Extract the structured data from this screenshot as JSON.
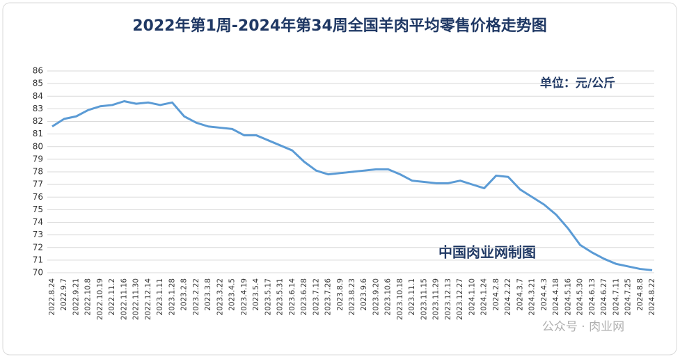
{
  "chart_data": {
    "type": "line",
    "title": "2022年第1周-2024年第34周全国羊肉平均零售价格走势图",
    "unit_note": "单位：元/公斤",
    "source_note": "中国肉业网制图",
    "watermark": "公众号 · 肉业网",
    "categories": [
      "2022.8.24",
      "2022.9.7",
      "2022.9.21",
      "2022.10.8",
      "2022.10.19",
      "2022.11.2",
      "2022.11.16",
      "2022.11.30",
      "2022.12.14",
      "2023.1.11",
      "2023.1.28",
      "2023.2.8",
      "2023.2.22",
      "2023.3.8",
      "2023.3.22",
      "2023.4.5",
      "2023.4.19",
      "2023.5.4",
      "2023.5.17",
      "2023.5.31",
      "2023.6.14",
      "2023.6.28",
      "2023.7.12",
      "2023.7.26",
      "2023.8.9",
      "2023.8.23",
      "2023.9.6",
      "2023.9.20",
      "2023.10.6",
      "2023.10.18",
      "2023.11.1",
      "2023.11.15",
      "2023.11.29",
      "2023.12.13",
      "2023.12.27",
      "2024.1.10",
      "2024.1.24",
      "2024.2.8",
      "2024.2.22",
      "2024.3.7",
      "2024.3.21",
      "2024.4.3",
      "2024.4.18",
      "2024.5.16",
      "2024.5.30",
      "2024.6.13",
      "2024.6.27",
      "2024.7.11",
      "2024.7.25",
      "2024.8.8",
      "2024.8.22"
    ],
    "values": [
      81.6,
      82.2,
      82.4,
      82.9,
      83.2,
      83.3,
      83.6,
      83.4,
      83.5,
      83.3,
      83.5,
      82.4,
      81.9,
      81.6,
      81.5,
      81.4,
      80.9,
      80.9,
      80.5,
      80.1,
      79.7,
      78.8,
      78.1,
      77.8,
      77.9,
      78.0,
      78.1,
      78.2,
      78.2,
      77.8,
      77.3,
      77.2,
      77.1,
      77.1,
      77.3,
      77.0,
      76.7,
      77.7,
      77.6,
      76.6,
      76.0,
      75.4,
      74.6,
      73.5,
      72.2,
      71.6,
      71.1,
      70.7,
      70.5,
      70.3,
      70.2
    ],
    "color": "#5b9bd5",
    "ylim": [
      70,
      86
    ],
    "yticks": [
      70,
      71,
      72,
      73,
      74,
      75,
      76,
      77,
      78,
      79,
      80,
      81,
      82,
      83,
      84,
      85,
      86
    ],
    "grid": true
  }
}
